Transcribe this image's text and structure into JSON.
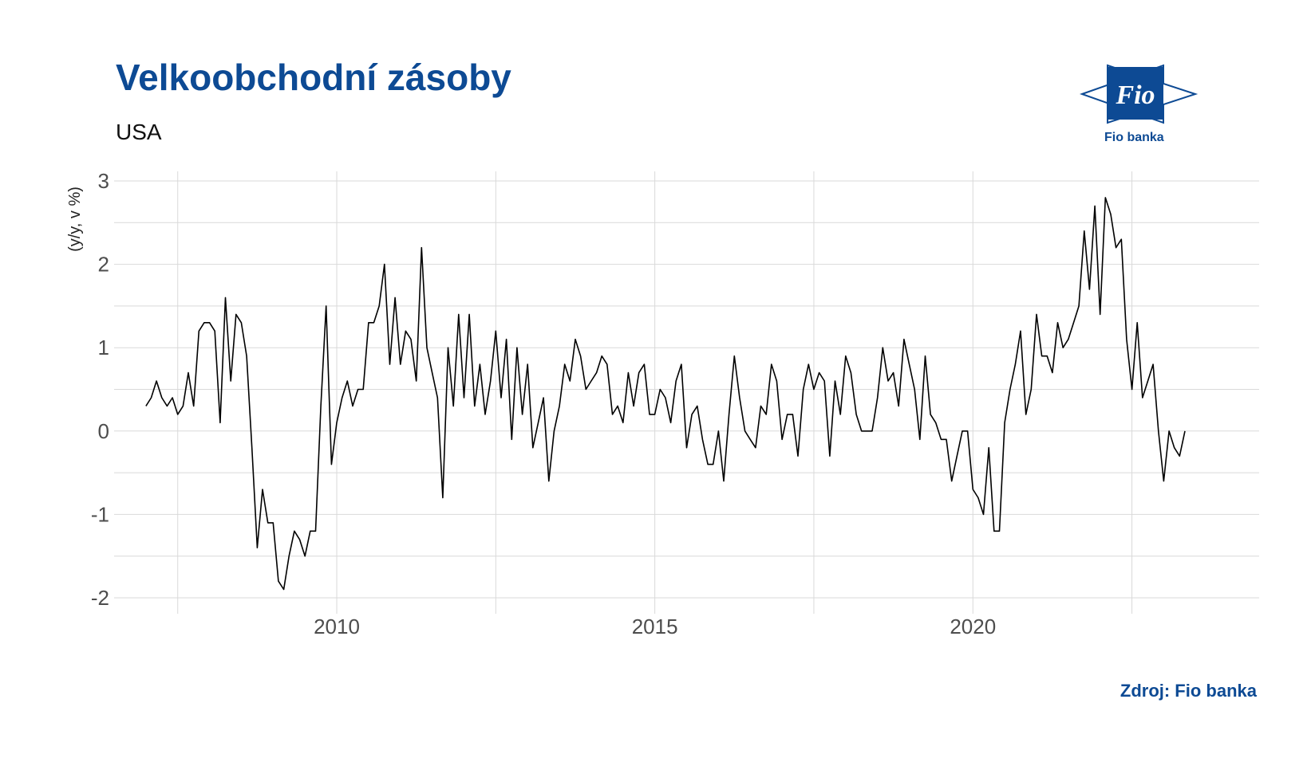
{
  "title": "Velkoobchodní zásoby",
  "subtitle": "USA",
  "source": "Zdroj: Fio banka",
  "logo": {
    "wordmark": "Fio",
    "caption": "Fio banka"
  },
  "colors": {
    "brand": "#0d4a94",
    "line": "#000000",
    "grid": "#d9d9d9"
  },
  "chart_data": {
    "type": "line",
    "title": "Velkoobchodní zásoby",
    "subtitle": "USA",
    "ylabel": "(y/y, v %)",
    "xlabel": "",
    "xlim": [
      2006.5,
      2024.5
    ],
    "ylim": [
      -2.05,
      3
    ],
    "xticks": [
      2010,
      2015,
      2020
    ],
    "xminor": [
      2007.5,
      2012.5,
      2017.5,
      2022.5
    ],
    "yticks": [
      -2,
      -1,
      0,
      1,
      2,
      3
    ],
    "grid": true,
    "series": [
      {
        "x_start": "2007-01",
        "frequency": "monthly",
        "values": [
          0.3,
          0.4,
          0.6,
          0.4,
          0.3,
          0.4,
          0.2,
          0.3,
          0.7,
          0.3,
          1.2,
          1.3,
          1.3,
          1.2,
          0.1,
          1.6,
          0.6,
          1.4,
          1.3,
          0.9,
          -0.2,
          -1.4,
          -0.7,
          -1.1,
          -1.1,
          -1.8,
          -1.9,
          -1.5,
          -1.2,
          -1.3,
          -1.5,
          -1.2,
          -1.2,
          0.3,
          1.5,
          -0.4,
          0.1,
          0.4,
          0.6,
          0.3,
          0.5,
          0.5,
          1.3,
          1.3,
          1.5,
          2.0,
          0.8,
          1.6,
          0.8,
          1.2,
          1.1,
          0.6,
          2.2,
          1.0,
          0.7,
          0.4,
          -0.8,
          1.0,
          0.3,
          1.4,
          0.4,
          1.4,
          0.3,
          0.8,
          0.2,
          0.6,
          1.2,
          0.4,
          1.1,
          -0.1,
          1.0,
          0.2,
          0.8,
          -0.2,
          0.1,
          0.4,
          -0.6,
          0.0,
          0.3,
          0.8,
          0.6,
          1.1,
          0.9,
          0.5,
          0.6,
          0.7,
          0.9,
          0.8,
          0.2,
          0.3,
          0.1,
          0.7,
          0.3,
          0.7,
          0.8,
          0.2,
          0.2,
          0.5,
          0.4,
          0.1,
          0.6,
          0.8,
          -0.2,
          0.2,
          0.3,
          -0.1,
          -0.4,
          -0.4,
          0.0,
          -0.6,
          0.2,
          0.9,
          0.4,
          0.0,
          -0.1,
          -0.2,
          0.3,
          0.2,
          0.8,
          0.6,
          -0.1,
          0.2,
          0.2,
          -0.3,
          0.5,
          0.8,
          0.5,
          0.7,
          0.6,
          -0.3,
          0.6,
          0.2,
          0.9,
          0.7,
          0.2,
          0.0,
          0.0,
          0.0,
          0.4,
          1.0,
          0.6,
          0.7,
          0.3,
          1.1,
          0.8,
          0.5,
          -0.1,
          0.9,
          0.2,
          0.1,
          -0.1,
          -0.1,
          -0.6,
          -0.3,
          0.0,
          0.0,
          -0.7,
          -0.8,
          -1.0,
          -0.2,
          -1.2,
          -1.2,
          0.1,
          0.5,
          0.8,
          1.2,
          0.2,
          0.5,
          1.4,
          0.9,
          0.9,
          0.7,
          1.3,
          1.0,
          1.1,
          1.3,
          1.5,
          2.4,
          1.7,
          2.7,
          1.4,
          2.8,
          2.6,
          2.2,
          2.3,
          1.1,
          0.5,
          1.3,
          0.4,
          0.6,
          0.8,
          0.0,
          -0.6,
          0.0,
          -0.2,
          -0.3,
          0.0
        ]
      }
    ]
  }
}
